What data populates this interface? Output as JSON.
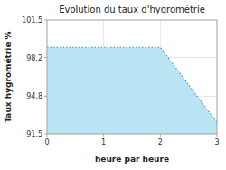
{
  "chart_data": {
    "type": "area",
    "title": "Evolution du taux d'hygrométrie",
    "xlabel": "heure par heure",
    "ylabel": "Taux hygrométrie %",
    "x": [
      0,
      1,
      2,
      3
    ],
    "values": [
      99.1,
      99.1,
      99.1,
      92.5
    ],
    "color": "#b8e4f4",
    "line_style": "dotted",
    "xlim": [
      0,
      3
    ],
    "ylim": [
      91.5,
      101.5
    ],
    "xticks": [
      0,
      1,
      2,
      3
    ],
    "yticks": [
      91.5,
      94.8,
      98.2,
      101.5
    ],
    "grid": true
  }
}
